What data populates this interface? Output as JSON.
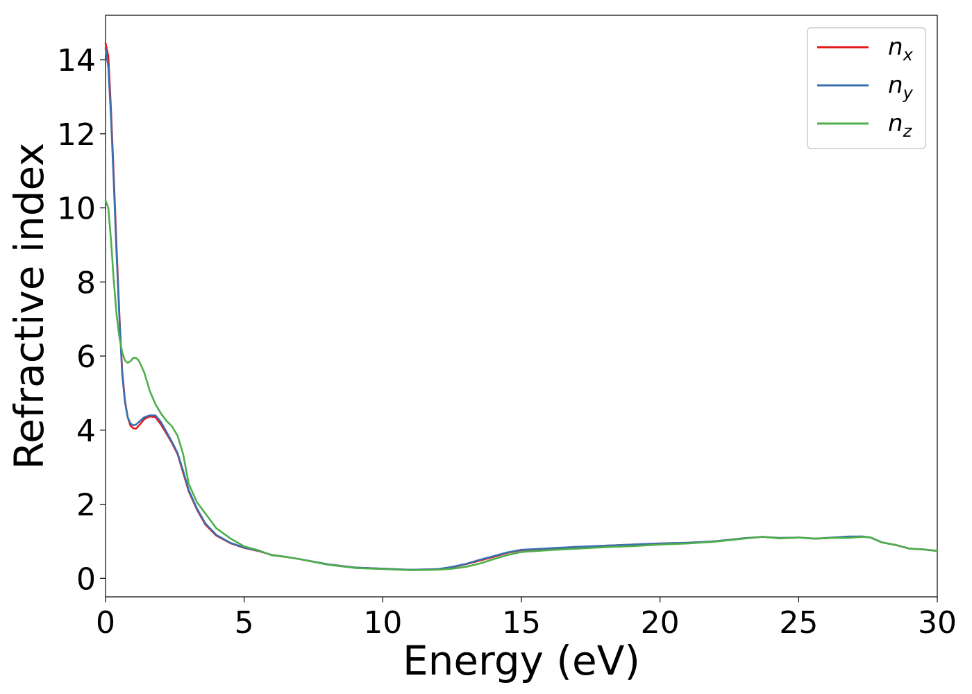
{
  "chart_data": {
    "type": "line",
    "xlabel": "Energy (eV)",
    "ylabel": "Refractive index",
    "xlim": [
      0,
      30
    ],
    "ylim": [
      -0.5,
      15.2
    ],
    "xticks": [
      0,
      5,
      10,
      15,
      20,
      25,
      30
    ],
    "yticks": [
      0,
      2,
      4,
      6,
      8,
      10,
      12,
      14
    ],
    "grid": false,
    "legend_position": "top-right",
    "series": [
      {
        "name": "n",
        "subscript": "x",
        "color": "#e41a1c",
        "x": [
          0,
          0.1,
          0.2,
          0.3,
          0.4,
          0.5,
          0.6,
          0.7,
          0.8,
          0.9,
          1.0,
          1.1,
          1.2,
          1.4,
          1.6,
          1.8,
          2.0,
          2.2,
          2.4,
          2.6,
          2.8,
          3.0,
          3.3,
          3.6,
          4.0,
          4.5,
          5.0,
          5.5,
          6.0,
          6.5,
          7.0,
          8.0,
          9.0,
          10.0,
          11.0,
          12.0,
          12.5,
          13.0,
          13.5,
          14.0,
          14.5,
          15.0,
          16.0,
          17.0,
          18.0,
          19.0,
          20.0,
          21.0,
          22.0,
          23.0,
          23.7,
          24.3,
          25.0,
          25.6,
          26.2,
          26.8,
          27.3,
          27.6,
          28.0,
          28.5,
          29.0,
          29.5,
          30.0
        ],
        "y": [
          14.45,
          14.1,
          12.6,
          10.8,
          8.9,
          7.1,
          5.6,
          4.8,
          4.35,
          4.12,
          4.05,
          4.04,
          4.12,
          4.3,
          4.37,
          4.35,
          4.15,
          3.9,
          3.65,
          3.35,
          2.85,
          2.35,
          1.85,
          1.45,
          1.15,
          0.95,
          0.82,
          0.74,
          0.63,
          0.58,
          0.52,
          0.38,
          0.29,
          0.26,
          0.23,
          0.25,
          0.3,
          0.38,
          0.48,
          0.58,
          0.69,
          0.76,
          0.8,
          0.84,
          0.88,
          0.91,
          0.94,
          0.96,
          1.0,
          1.08,
          1.12,
          1.08,
          1.1,
          1.07,
          1.09,
          1.12,
          1.13,
          1.1,
          0.97,
          0.9,
          0.8,
          0.78,
          0.74
        ]
      },
      {
        "name": "n",
        "subscript": "y",
        "color": "#3a6fb0",
        "x": [
          0,
          0.1,
          0.2,
          0.3,
          0.4,
          0.5,
          0.6,
          0.7,
          0.8,
          0.9,
          1.0,
          1.1,
          1.2,
          1.4,
          1.6,
          1.8,
          2.0,
          2.2,
          2.4,
          2.6,
          2.8,
          3.0,
          3.3,
          3.6,
          4.0,
          4.5,
          5.0,
          5.5,
          6.0,
          6.5,
          7.0,
          8.0,
          9.0,
          10.0,
          11.0,
          12.0,
          12.5,
          13.0,
          13.5,
          14.0,
          14.5,
          15.0,
          16.0,
          17.0,
          18.0,
          19.0,
          20.0,
          21.0,
          22.0,
          23.0,
          23.7,
          24.3,
          25.0,
          25.6,
          26.2,
          26.8,
          27.3,
          27.6,
          28.0,
          28.5,
          29.0,
          29.5,
          30.0
        ],
        "y": [
          14.3,
          13.8,
          12.4,
          10.6,
          8.7,
          7.0,
          5.5,
          4.75,
          4.35,
          4.18,
          4.13,
          4.15,
          4.22,
          4.35,
          4.4,
          4.4,
          4.22,
          3.95,
          3.68,
          3.38,
          2.9,
          2.38,
          1.88,
          1.48,
          1.17,
          0.96,
          0.83,
          0.75,
          0.63,
          0.58,
          0.52,
          0.38,
          0.29,
          0.26,
          0.23,
          0.25,
          0.31,
          0.39,
          0.5,
          0.6,
          0.7,
          0.77,
          0.81,
          0.85,
          0.88,
          0.91,
          0.94,
          0.96,
          1.0,
          1.08,
          1.12,
          1.09,
          1.1,
          1.07,
          1.1,
          1.13,
          1.13,
          1.1,
          0.97,
          0.9,
          0.8,
          0.78,
          0.74
        ]
      },
      {
        "name": "n",
        "subscript": "z",
        "color": "#4daf4a",
        "x": [
          0,
          0.1,
          0.2,
          0.3,
          0.4,
          0.5,
          0.6,
          0.7,
          0.8,
          0.9,
          1.0,
          1.1,
          1.2,
          1.4,
          1.6,
          1.8,
          2.0,
          2.2,
          2.4,
          2.6,
          2.8,
          3.0,
          3.3,
          3.6,
          4.0,
          4.5,
          5.0,
          5.5,
          6.0,
          6.5,
          7.0,
          8.0,
          9.0,
          10.0,
          11.0,
          12.0,
          12.5,
          13.0,
          13.5,
          14.0,
          14.5,
          15.0,
          16.0,
          17.0,
          18.0,
          19.0,
          20.0,
          21.0,
          22.0,
          23.0,
          23.7,
          24.3,
          25.0,
          25.6,
          26.2,
          26.8,
          27.3,
          27.6,
          28.0,
          28.5,
          29.0,
          29.5,
          30.0
        ],
        "y": [
          10.2,
          10.0,
          9.1,
          8.0,
          7.1,
          6.5,
          6.1,
          5.88,
          5.82,
          5.86,
          5.95,
          5.95,
          5.88,
          5.55,
          5.05,
          4.7,
          4.45,
          4.25,
          4.1,
          3.85,
          3.35,
          2.55,
          2.05,
          1.75,
          1.35,
          1.08,
          0.86,
          0.76,
          0.62,
          0.58,
          0.52,
          0.37,
          0.28,
          0.25,
          0.22,
          0.23,
          0.26,
          0.31,
          0.4,
          0.52,
          0.63,
          0.71,
          0.76,
          0.8,
          0.84,
          0.87,
          0.91,
          0.94,
          0.99,
          1.07,
          1.12,
          1.08,
          1.1,
          1.07,
          1.09,
          1.09,
          1.12,
          1.1,
          0.97,
          0.9,
          0.8,
          0.78,
          0.74
        ]
      }
    ]
  }
}
